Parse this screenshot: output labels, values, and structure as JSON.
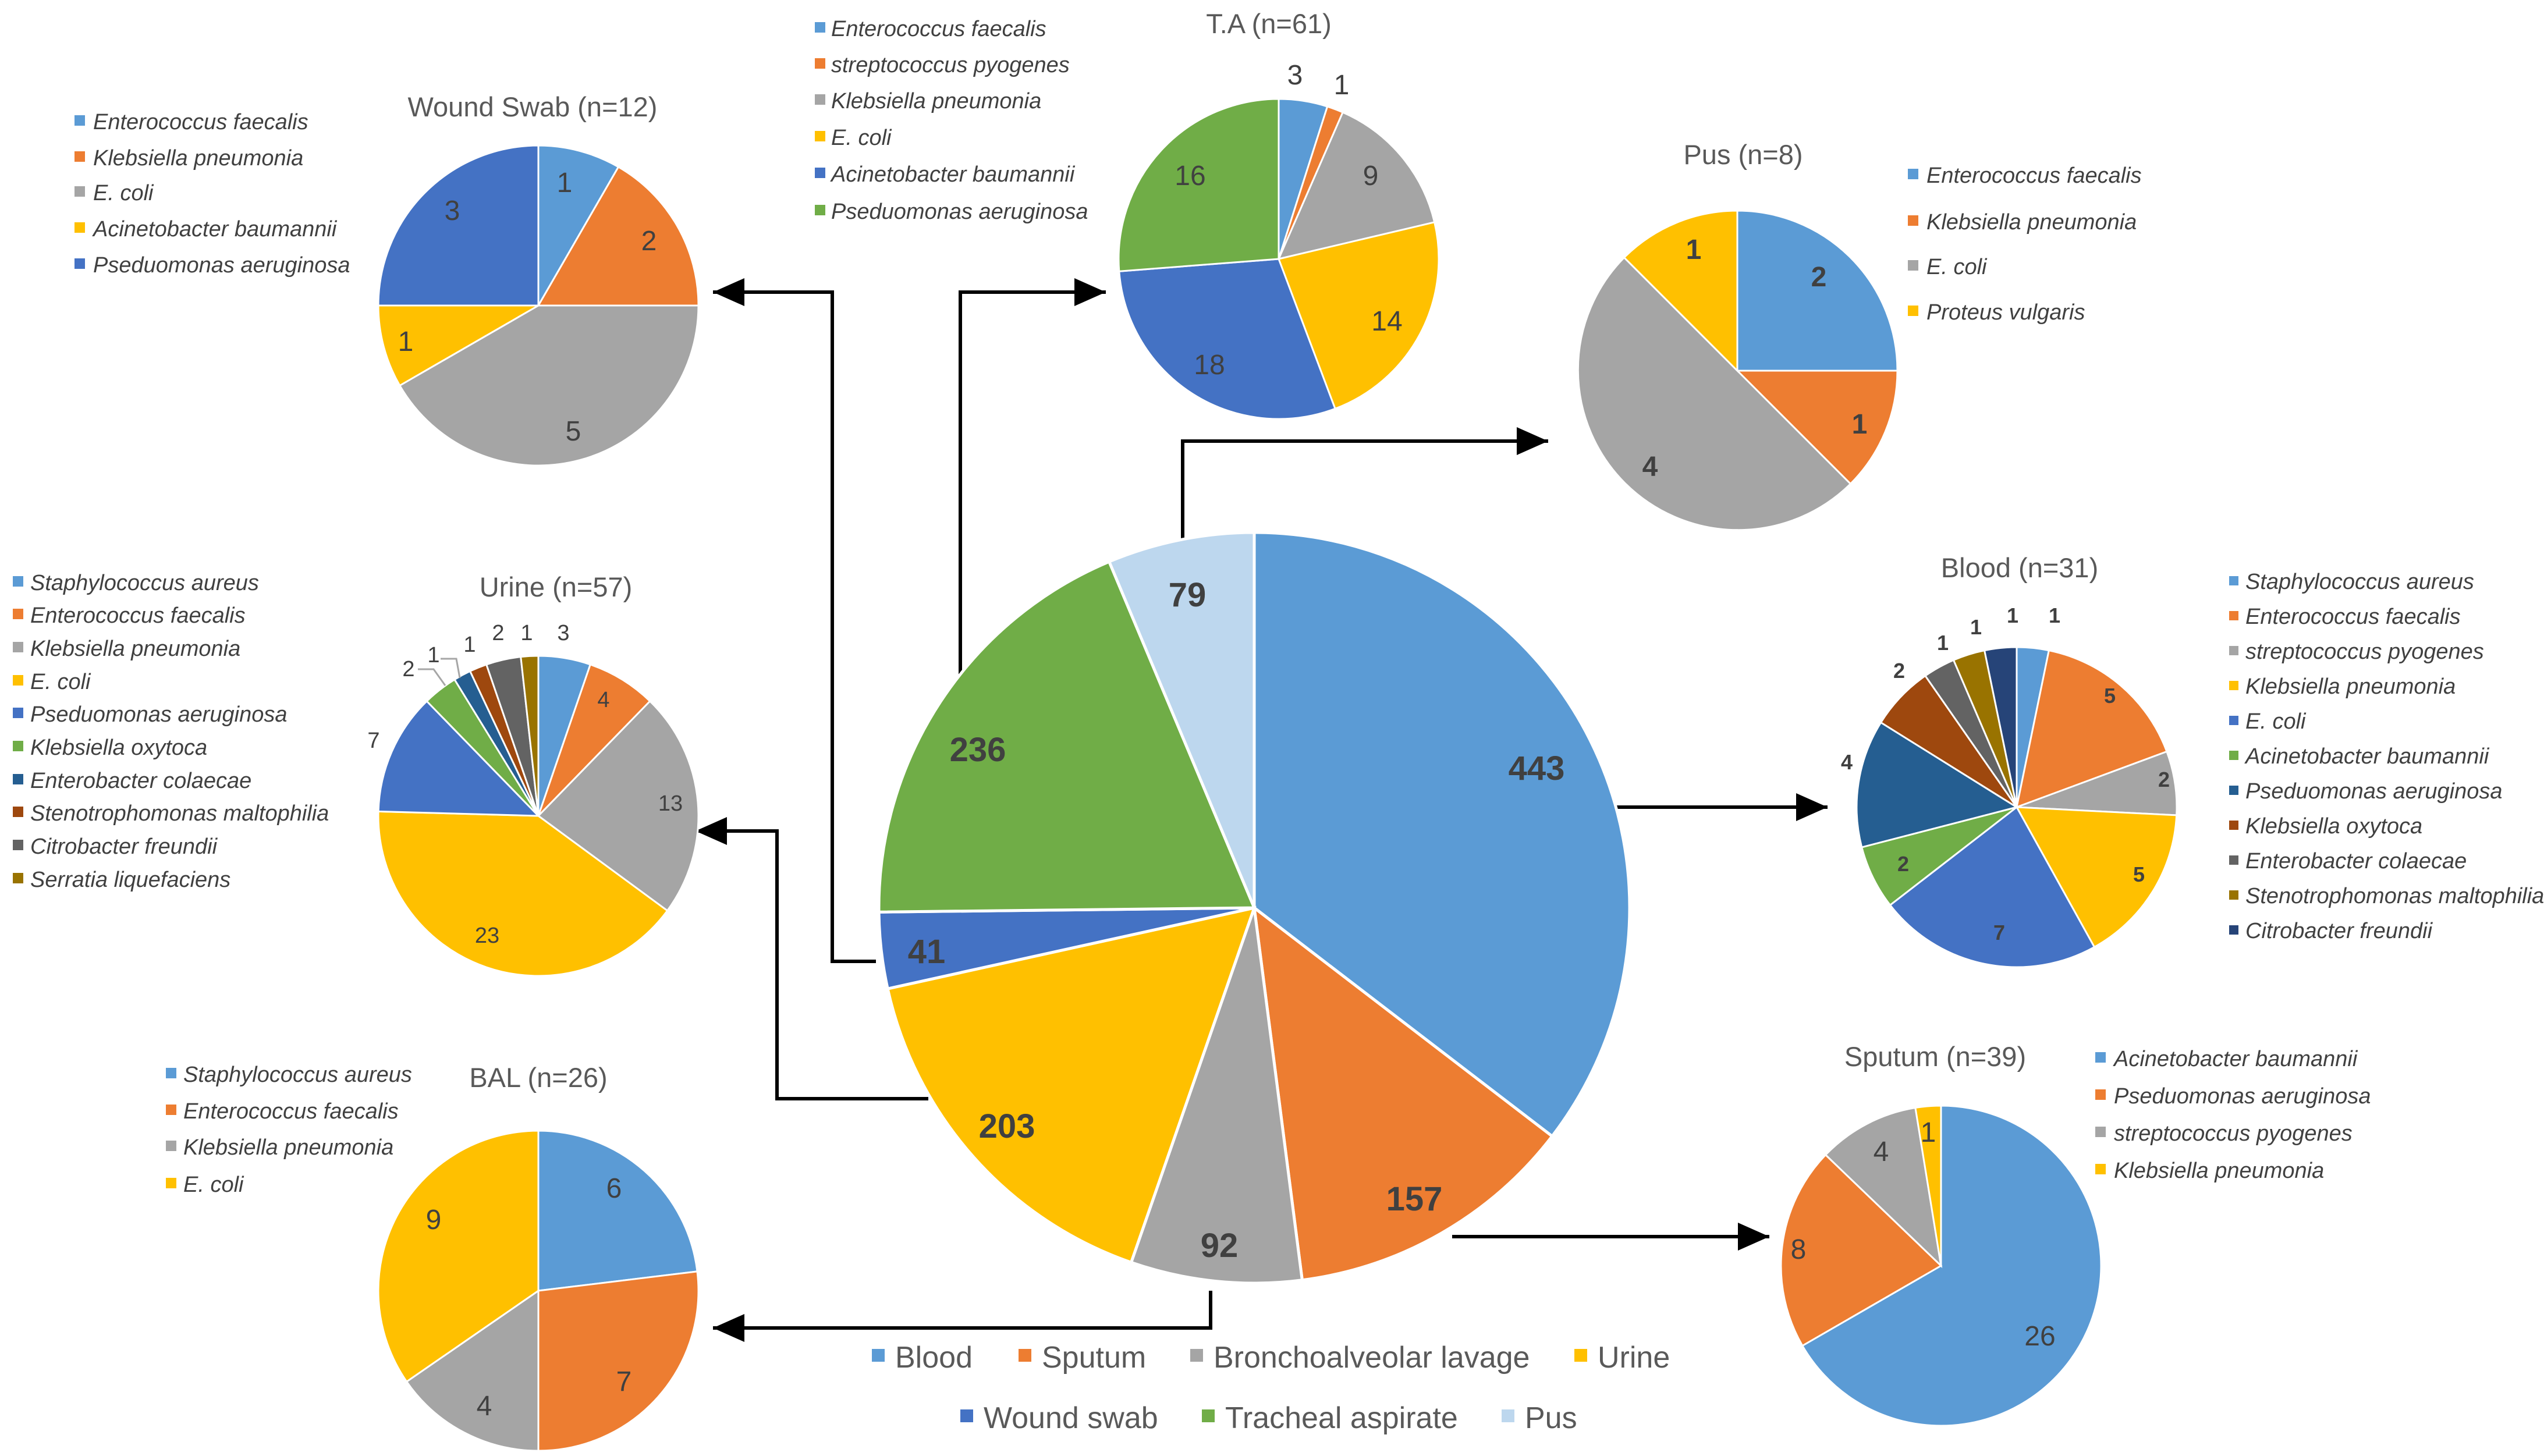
{
  "colors": {
    "blue": "#5b9bd5",
    "orange": "#ed7d31",
    "gray": "#a5a5a5",
    "gold": "#ffc000",
    "royal": "#4472c4",
    "green": "#70ad47",
    "navy": "#255e91",
    "brown": "#9e480e",
    "darkgray": "#636363",
    "olive": "#997300",
    "darkblue": "#264478",
    "lightblue": "#bdd7ee"
  },
  "chart_data": [
    {
      "id": "main",
      "type": "pie",
      "title": "",
      "categories": [
        "Blood",
        "Sputum",
        "Bronchoalveolar lavage",
        "Urine",
        "Wound swab",
        "Tracheal aspirate",
        "Pus"
      ],
      "values": [
        443,
        157,
        92,
        203,
        41,
        236,
        79
      ],
      "data_labels": [
        "443",
        "157",
        "92",
        "203",
        "41",
        "236",
        "79"
      ],
      "legend": "bottom",
      "colors": [
        "blue",
        "orange",
        "gray",
        "gold",
        "royal",
        "green",
        "lightblue"
      ]
    },
    {
      "id": "wound-swab",
      "type": "pie",
      "title": "Wound Swab (n=12)",
      "categories": [
        "Enterococcus faecalis",
        "Klebsiella pneumonia",
        "E. coli",
        "Acinetobacter baumannii",
        "Pseduomonas aeruginosa"
      ],
      "values": [
        1,
        2,
        5,
        1,
        3
      ],
      "data_labels": [
        "1",
        "2",
        "5",
        "1",
        "3"
      ],
      "legend": "left",
      "colors": [
        "blue",
        "orange",
        "gray",
        "gold",
        "royal"
      ]
    },
    {
      "id": "ta",
      "type": "pie",
      "title": "T.A (n=61)",
      "categories": [
        "Enterococcus faecalis",
        "streptococcus pyogenes",
        "Klebsiella pneumonia",
        "E. coli",
        "Acinetobacter baumannii",
        "Pseduomonas aeruginosa"
      ],
      "values": [
        3,
        1,
        9,
        14,
        18,
        16
      ],
      "data_labels": [
        "3",
        "1",
        "9",
        "14",
        "18",
        "16"
      ],
      "legend": "left",
      "colors": [
        "blue",
        "orange",
        "gray",
        "gold",
        "royal",
        "green"
      ]
    },
    {
      "id": "pus",
      "type": "pie",
      "title": "Pus (n=8)",
      "categories": [
        "Enterococcus faecalis",
        "Klebsiella pneumonia",
        "E. coli",
        "Proteus vulgaris"
      ],
      "values": [
        2,
        1,
        4,
        1
      ],
      "data_labels": [
        "2",
        "1",
        "4",
        "1"
      ],
      "legend": "right",
      "colors": [
        "blue",
        "orange",
        "gray",
        "gold"
      ]
    },
    {
      "id": "urine",
      "type": "pie",
      "title": "Urine (n=57)",
      "categories": [
        "Staphylococcus aureus",
        "Enterococcus faecalis",
        "Klebsiella pneumonia",
        "E. coli",
        "Pseduomonas aeruginosa",
        "Klebsiella oxytoca",
        "Enterobacter colaecae",
        "Stenotrophomonas maltophilia",
        "Citrobacter freundii",
        "Serratia liquefaciens"
      ],
      "values": [
        3,
        4,
        13,
        23,
        7,
        2,
        1,
        1,
        2,
        1
      ],
      "data_labels": [
        "3",
        "4",
        "13",
        "23",
        "7",
        "2",
        "1",
        "1",
        "2",
        "1"
      ],
      "legend": "left",
      "colors": [
        "blue",
        "orange",
        "gray",
        "gold",
        "royal",
        "green",
        "navy",
        "brown",
        "darkgray",
        "olive"
      ]
    },
    {
      "id": "blood",
      "type": "pie",
      "title": "Blood (n=31)",
      "categories": [
        "Staphylococcus aureus",
        "Enterococcus faecalis",
        "streptococcus pyogenes",
        "Klebsiella pneumonia",
        "E. coli",
        "Acinetobacter baumannii",
        "Pseduomonas aeruginosa",
        "Klebsiella oxytoca",
        "Enterobacter colaecae",
        "Stenotrophomonas maltophilia",
        "Citrobacter freundii"
      ],
      "values": [
        1,
        5,
        2,
        5,
        7,
        2,
        4,
        2,
        1,
        1,
        1
      ],
      "data_labels": [
        "1",
        "5",
        "2",
        "5",
        "7",
        "2",
        "4",
        "2",
        "1",
        "1",
        "1"
      ],
      "legend": "right",
      "colors": [
        "blue",
        "orange",
        "gray",
        "gold",
        "royal",
        "green",
        "navy",
        "brown",
        "darkgray",
        "olive",
        "darkblue"
      ]
    },
    {
      "id": "bal",
      "type": "pie",
      "title": "BAL (n=26)",
      "categories": [
        "Staphylococcus aureus",
        "Enterococcus faecalis",
        "Klebsiella pneumonia",
        "E. coli"
      ],
      "values": [
        6,
        7,
        4,
        9
      ],
      "data_labels": [
        "6",
        "7",
        "4",
        "9"
      ],
      "legend": "left",
      "colors": [
        "blue",
        "orange",
        "gray",
        "gold"
      ]
    },
    {
      "id": "sputum",
      "type": "pie",
      "title": "Sputum (n=39)",
      "categories": [
        "Acinetobacter baumannii",
        "Pseduomonas aeruginosa",
        "streptococcus pyogenes",
        "Klebsiella pneumonia"
      ],
      "values": [
        26,
        8,
        4,
        1
      ],
      "data_labels": [
        "26",
        "8",
        "4",
        "1"
      ],
      "legend": "right",
      "colors": [
        "blue",
        "orange",
        "gray",
        "gold"
      ]
    }
  ]
}
